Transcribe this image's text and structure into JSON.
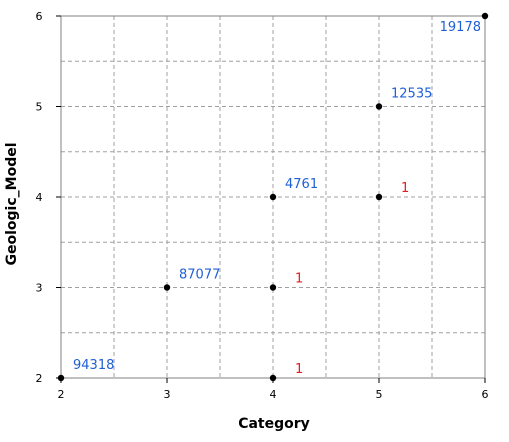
{
  "chart_data": {
    "type": "scatter",
    "title": "",
    "xlabel": "Category",
    "ylabel": "Geologic_Model",
    "xlim": [
      2,
      6
    ],
    "ylim": [
      2,
      6
    ],
    "x_ticks": [
      "2",
      "3",
      "4",
      "5",
      "6"
    ],
    "y_ticks": [
      "2",
      "3",
      "4",
      "5",
      "6"
    ],
    "grid": true,
    "legend": "none",
    "colors": {
      "point": "#000000",
      "label_blue": "#1f5fd6",
      "label_red": "#e02020",
      "grid": "#a0a0a0",
      "frame": "#808080"
    },
    "points": [
      {
        "x": 2,
        "y": 2,
        "label": "94318",
        "label_color": "blue"
      },
      {
        "x": 3,
        "y": 3,
        "label": "87077",
        "label_color": "blue"
      },
      {
        "x": 4,
        "y": 2,
        "label": "1",
        "label_color": "red"
      },
      {
        "x": 4,
        "y": 3,
        "label": "1",
        "label_color": "red"
      },
      {
        "x": 4,
        "y": 4,
        "label": "4761",
        "label_color": "blue"
      },
      {
        "x": 5,
        "y": 4,
        "label": "1",
        "label_color": "red"
      },
      {
        "x": 5,
        "y": 5,
        "label": "12535",
        "label_color": "blue"
      },
      {
        "x": 6,
        "y": 6,
        "label": "19178",
        "label_color": "blue"
      }
    ]
  }
}
